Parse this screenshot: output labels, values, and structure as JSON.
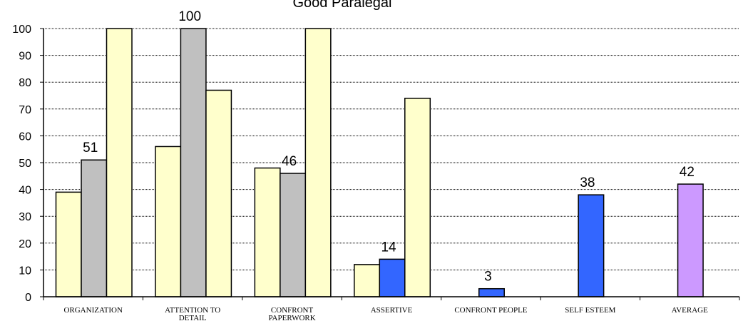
{
  "chart_data": {
    "type": "bar",
    "title": "Good Paralegal",
    "xlabel": "",
    "ylabel": "",
    "ylim": [
      0,
      100
    ],
    "yticks": [
      "0",
      "10",
      "20",
      "30",
      "40",
      "50",
      "60",
      "70",
      "80",
      "90",
      "100"
    ],
    "grid": true,
    "legend": "none",
    "colors": {
      "reference": "#ffffcc",
      "gray": "#c0c0c0",
      "blue": "#3366ff",
      "purple": "#cc99ff",
      "outline": "#000000",
      "grid": "#000000"
    },
    "categories": [
      {
        "label": [
          "ORGANIZATION"
        ],
        "bars": [
          {
            "value": 39,
            "color": "reference"
          },
          {
            "value": 51,
            "color": "gray",
            "label": "51"
          },
          {
            "value": 100,
            "color": "reference"
          }
        ]
      },
      {
        "label": [
          "ATTENTION TO",
          "DETAIL"
        ],
        "bars": [
          {
            "value": 56,
            "color": "reference"
          },
          {
            "value": 100,
            "color": "gray",
            "label": "100"
          },
          {
            "value": 77,
            "color": "reference"
          }
        ]
      },
      {
        "label": [
          "CONFRONT",
          "PAPERWORK"
        ],
        "bars": [
          {
            "value": 48,
            "color": "reference"
          },
          {
            "value": 46,
            "color": "gray",
            "label": "46"
          },
          {
            "value": 100,
            "color": "reference"
          }
        ]
      },
      {
        "label": [
          "ASSERTIVE"
        ],
        "bars": [
          {
            "value": 12,
            "color": "reference"
          },
          {
            "value": 14,
            "color": "blue",
            "label": "14"
          },
          {
            "value": 74,
            "color": "reference"
          }
        ]
      },
      {
        "label": [
          "CONFRONT PEOPLE"
        ],
        "bars": [
          {
            "value": 0,
            "color": "reference"
          },
          {
            "value": 3,
            "color": "blue",
            "label": "3"
          },
          {
            "value": 0,
            "color": "reference"
          }
        ]
      },
      {
        "label": [
          "SELF ESTEEM"
        ],
        "bars": [
          {
            "value": 0,
            "color": "reference"
          },
          {
            "value": 38,
            "color": "blue",
            "label": "38"
          },
          {
            "value": 0,
            "color": "reference"
          }
        ]
      },
      {
        "label": [
          "AVERAGE"
        ],
        "bars": [
          {
            "value": 0,
            "color": "reference"
          },
          {
            "value": 42,
            "color": "purple",
            "label": "42"
          },
          {
            "value": 0,
            "color": "reference"
          }
        ]
      }
    ]
  }
}
